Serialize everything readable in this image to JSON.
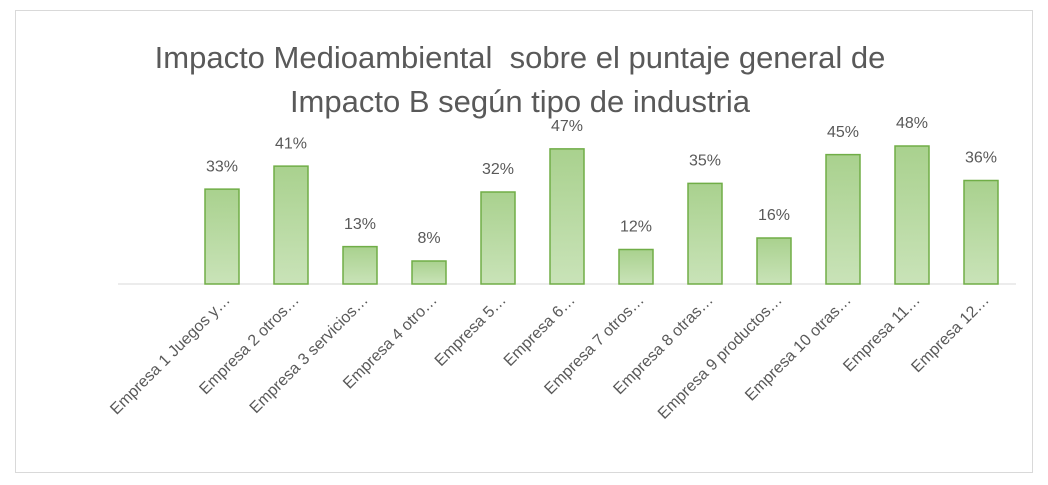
{
  "chart_data": {
    "type": "bar",
    "title": "Impacto Medioambiental  sobre el puntaje general de Impacto B según tipo de industria",
    "categories": [
      "Empresa 1 Juegos y…",
      "Empresa 2 otros…",
      "Empresa 3 servicios…",
      "Empresa 4 otro…",
      "Empresa 5…",
      "Empresa 6…",
      "Empresa 7 otros…",
      "Empresa 8 otras…",
      "Empresa 9 productos…",
      "Empresa 10 otras…",
      "Empresa 11…",
      "Empresa 12…"
    ],
    "values": [
      33,
      41,
      13,
      8,
      32,
      47,
      12,
      35,
      16,
      45,
      48,
      36
    ],
    "value_labels": [
      "33%",
      "41%",
      "13%",
      "8%",
      "32%",
      "47%",
      "12%",
      "35%",
      "16%",
      "45%",
      "48%",
      "36%"
    ],
    "color": "#a9d18e"
  }
}
